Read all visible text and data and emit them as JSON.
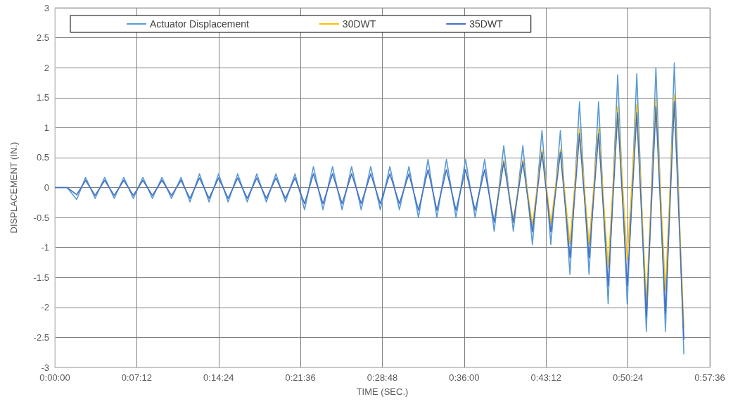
{
  "chart_data": {
    "type": "line",
    "xlabel": "TIME (SEC.)",
    "ylabel": "DISPLACEMENT (IN.)",
    "x": [
      0,
      0.018,
      0.032,
      0.045,
      0.059,
      0.073,
      0.087,
      0.101,
      0.115,
      0.129,
      0.143,
      0.157,
      0.171,
      0.185,
      0.198,
      0.212,
      0.226,
      0.24,
      0.254,
      0.268,
      0.282,
      0.296,
      0.31,
      0.324,
      0.338,
      0.352,
      0.366,
      0.379,
      0.393,
      0.407,
      0.421,
      0.435,
      0.449,
      0.463,
      0.477,
      0.491,
      0.505,
      0.519,
      0.533,
      0.547,
      0.56,
      0.574,
      0.588,
      0.602,
      0.616,
      0.63,
      0.644,
      0.658,
      0.672,
      0.686,
      0.7,
      0.714,
      0.727,
      0.741,
      0.755,
      0.769,
      0.783,
      0.797,
      0.811,
      0.825,
      0.839,
      0.853,
      0.867,
      0.881,
      0.895,
      0.908,
      0.922
    ],
    "series": [
      {
        "name": "Actuator Displacement",
        "color": "#5b9bd5",
        "values": [
          0,
          0,
          -0.2,
          0.17,
          -0.18,
          0.17,
          -0.18,
          0.17,
          -0.18,
          0.17,
          -0.18,
          0.17,
          -0.18,
          0.17,
          -0.24,
          0.23,
          -0.24,
          0.23,
          -0.24,
          0.23,
          -0.24,
          0.23,
          -0.24,
          0.23,
          -0.24,
          0.23,
          -0.37,
          0.35,
          -0.37,
          0.35,
          -0.37,
          0.35,
          -0.37,
          0.35,
          -0.37,
          0.35,
          -0.37,
          0.35,
          -0.5,
          0.47,
          -0.5,
          0.47,
          -0.5,
          0.47,
          -0.5,
          0.47,
          -0.73,
          0.7,
          -0.73,
          0.7,
          -0.95,
          0.95,
          -0.95,
          0.95,
          -1.45,
          1.43,
          -1.45,
          1.43,
          -1.94,
          1.88,
          -1.94,
          1.9,
          -2.4,
          2.0,
          -2.4,
          2.08,
          -2.78
        ]
      },
      {
        "name": "30DWT",
        "color": "#ffc000",
        "values": [
          null,
          null,
          null,
          null,
          null,
          null,
          null,
          null,
          null,
          null,
          null,
          null,
          null,
          null,
          null,
          null,
          null,
          null,
          null,
          null,
          null,
          null,
          null,
          null,
          null,
          null,
          null,
          null,
          null,
          null,
          null,
          null,
          null,
          null,
          null,
          null,
          null,
          null,
          null,
          null,
          null,
          null,
          null,
          null,
          null,
          null,
          -0.55,
          0.46,
          -0.55,
          0.46,
          -0.63,
          0.63,
          -0.6,
          0.63,
          -0.94,
          0.98,
          -0.95,
          0.98,
          -1.33,
          1.35,
          -1.2,
          1.39,
          -1.92,
          1.47,
          -1.72,
          1.55,
          -2.35
        ]
      },
      {
        "name": "35DWT",
        "color": "#4472c4",
        "values": [
          0,
          0,
          -0.12,
          0.12,
          -0.13,
          0.12,
          -0.13,
          0.12,
          -0.13,
          0.12,
          -0.13,
          0.12,
          -0.13,
          0.12,
          -0.18,
          0.16,
          -0.18,
          0.16,
          -0.18,
          0.16,
          -0.18,
          0.16,
          -0.18,
          0.16,
          -0.18,
          0.16,
          -0.27,
          0.23,
          -0.27,
          0.23,
          -0.27,
          0.23,
          -0.27,
          0.23,
          -0.27,
          0.23,
          -0.27,
          0.23,
          -0.38,
          0.3,
          -0.38,
          0.3,
          -0.38,
          0.3,
          -0.38,
          0.3,
          -0.58,
          0.43,
          -0.58,
          0.43,
          -0.74,
          0.59,
          -0.74,
          0.59,
          -1.17,
          0.9,
          -1.17,
          0.9,
          -1.64,
          1.25,
          -1.64,
          1.25,
          -2.15,
          1.35,
          -2.1,
          1.43,
          -2.54
        ]
      }
    ],
    "xlim": [
      0,
      0.96
    ],
    "xticks": [
      {
        "value": 0,
        "label": "0:00:00"
      },
      {
        "value": 0.12,
        "label": "0:07:12"
      },
      {
        "value": 0.24,
        "label": "0:14:24"
      },
      {
        "value": 0.36,
        "label": "0:21:36"
      },
      {
        "value": 0.48,
        "label": "0:28:48"
      },
      {
        "value": 0.6,
        "label": "0:36:00"
      },
      {
        "value": 0.72,
        "label": "0:43:12"
      },
      {
        "value": 0.84,
        "label": "0:50:24"
      },
      {
        "value": 0.96,
        "label": "0:57:36"
      }
    ],
    "ylim": [
      -3,
      3
    ],
    "yticks": [
      -3,
      -2.5,
      -2,
      -1.5,
      -1,
      -0.5,
      0,
      0.5,
      1,
      1.5,
      2,
      2.5,
      3
    ],
    "grid": true,
    "legend": "top left",
    "marker": "none",
    "line_style": "solid"
  }
}
